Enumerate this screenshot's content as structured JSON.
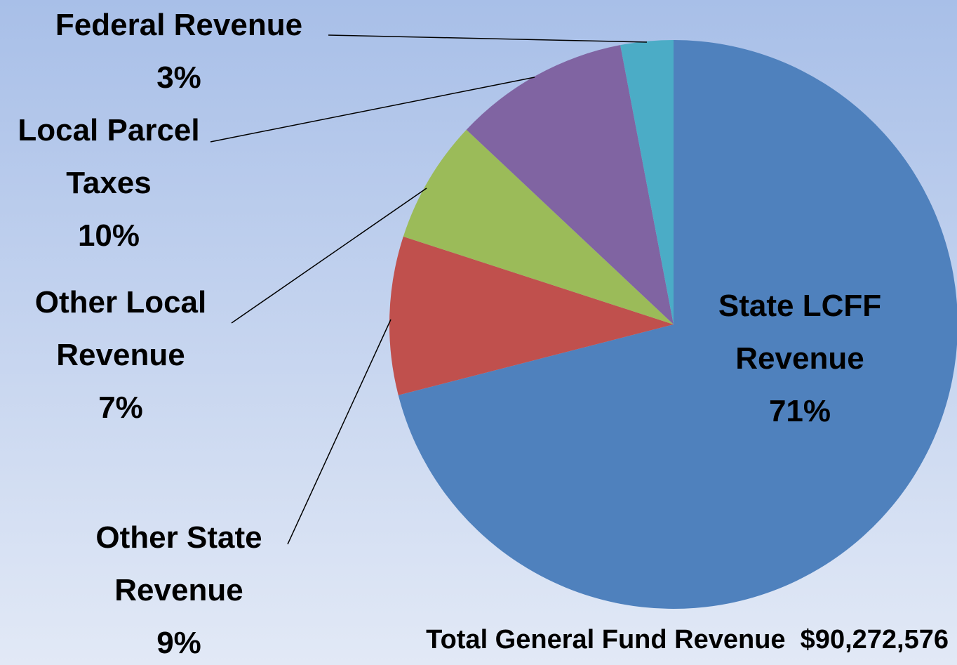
{
  "chart_data": {
    "type": "pie",
    "categories": [
      "State LCFF Revenue",
      "Other State Revenue",
      "Other Local Revenue",
      "Local Parcel Taxes",
      "Federal Revenue"
    ],
    "values": [
      71,
      9,
      7,
      10,
      3
    ],
    "value_labels": [
      "71%",
      "9%",
      "7%",
      "10%",
      "3%"
    ],
    "colors": [
      "#4f81bd",
      "#c0504d",
      "#9bbb59",
      "#8064a2",
      "#4bacc6"
    ],
    "annotation": "Total General Fund Revenue  $90,272,576"
  }
}
